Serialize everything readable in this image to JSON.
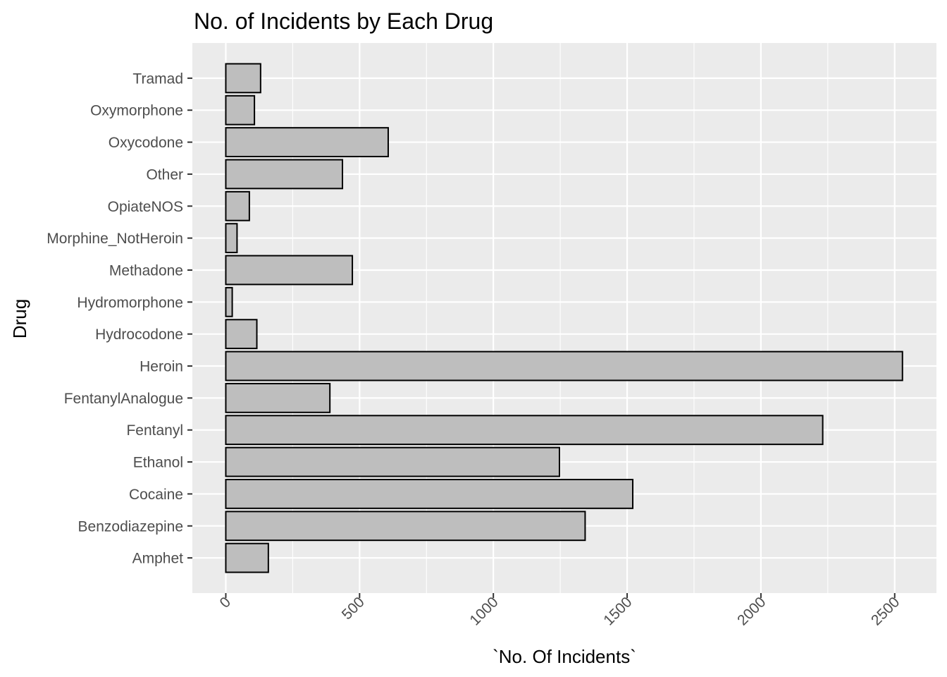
{
  "chart_data": {
    "type": "bar",
    "orientation": "horizontal",
    "title": "No. of Incidents by Each Drug",
    "xlabel": "`No. Of Incidents`",
    "ylabel": "Drug",
    "categories": [
      "Amphet",
      "Benzodiazepine",
      "Cocaine",
      "Ethanol",
      "Fentanyl",
      "FentanylAnalogue",
      "Heroin",
      "Hydrocodone",
      "Hydromorphone",
      "Methadone",
      "Morphine_NotHeroin",
      "OpiateNOS",
      "Other",
      "Oxycodone",
      "Oxymorphone",
      "Tramad"
    ],
    "values": [
      159,
      1343,
      1521,
      1247,
      2231,
      389,
      2529,
      116,
      24,
      473,
      42,
      88,
      436,
      607,
      107,
      130
    ],
    "xlim": [
      -125,
      2656
    ],
    "xticks": [
      0,
      500,
      1000,
      1500,
      2000,
      2500
    ],
    "xtick_labels": [
      "0",
      "500",
      "1000",
      "1500",
      "2000",
      "2500"
    ],
    "grid": true,
    "legend": "none",
    "colors": {
      "panel_background": "#ebebeb",
      "grid_major": "#ffffff",
      "bar_fill": "#bebebe",
      "bar_outline": "#000000",
      "tick_label": "#4d4d4d",
      "tick_mark": "#333333"
    }
  }
}
